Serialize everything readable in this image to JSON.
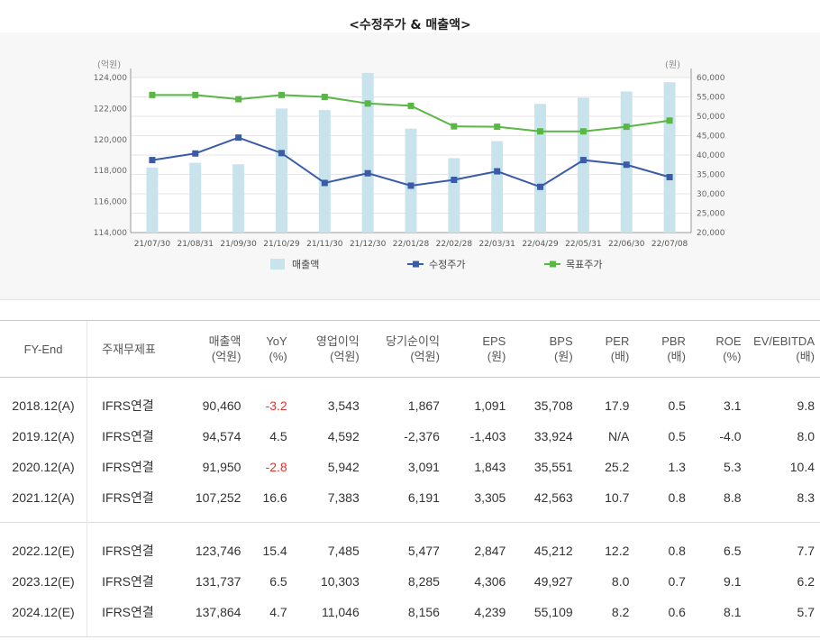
{
  "chart_data": {
    "type": "bar+line",
    "title": "<수정주가 & 매출액>",
    "categories": [
      "21/07/30",
      "21/08/31",
      "21/09/30",
      "21/10/29",
      "21/11/30",
      "21/12/30",
      "22/01/28",
      "22/02/28",
      "22/03/31",
      "22/04/29",
      "22/05/31",
      "22/06/30",
      "22/07/08"
    ],
    "left_axis": {
      "unit": "(억원)",
      "ylim": [
        114000,
        124000
      ],
      "ticks": [
        "114,000",
        "116,000",
        "118,000",
        "120,000",
        "122,000",
        "124,000"
      ]
    },
    "right_axis": {
      "unit": "(원)",
      "ylim": [
        20000,
        60000
      ],
      "ticks": [
        "20,000",
        "25,000",
        "30,000",
        "35,000",
        "40,000",
        "45,000",
        "50,000",
        "55,000",
        "60,000"
      ]
    },
    "series": [
      {
        "name": "매출액",
        "kind": "bar",
        "axis": "left",
        "color": "#c8e3ec",
        "values": [
          118200,
          118500,
          118400,
          122000,
          121900,
          124300,
          120700,
          118800,
          119900,
          122300,
          122700,
          123100,
          123700
        ]
      },
      {
        "name": "수정주가",
        "kind": "line",
        "axis": "right",
        "color": "#3a5ca8",
        "values": [
          38700,
          40400,
          44500,
          40500,
          32800,
          35300,
          32100,
          33600,
          35800,
          31800,
          38700,
          37500,
          34300
        ]
      },
      {
        "name": "목표주가",
        "kind": "line",
        "axis": "right",
        "color": "#59b746",
        "values": [
          55500,
          55500,
          54400,
          55500,
          55000,
          53300,
          52700,
          47400,
          47300,
          46100,
          46100,
          47300,
          48900
        ]
      }
    ],
    "legend_position": "bottom",
    "grid": true
  },
  "table": {
    "headers": [
      [
        "FY-End",
        ""
      ],
      [
        "주재무제표",
        ""
      ],
      [
        "매출액",
        "(억원)"
      ],
      [
        "YoY",
        "(%)"
      ],
      [
        "영업이익",
        "(억원)"
      ],
      [
        "당기순이익",
        "(억원)"
      ],
      [
        "EPS",
        "(원)"
      ],
      [
        "BPS",
        "(원)"
      ],
      [
        "PER",
        "(배)"
      ],
      [
        "PBR",
        "(배)"
      ],
      [
        "ROE",
        "(%)"
      ],
      [
        "EV/EBITDA",
        "(배)"
      ]
    ],
    "rows": [
      [
        "2018.12(A)",
        "IFRS연결",
        "90,460",
        "-3.2",
        "3,543",
        "1,867",
        "1,091",
        "35,708",
        "17.9",
        "0.5",
        "3.1",
        "9.8"
      ],
      [
        "2019.12(A)",
        "IFRS연결",
        "94,574",
        "4.5",
        "4,592",
        "-2,376",
        "-1,403",
        "33,924",
        "N/A",
        "0.5",
        "-4.0",
        "8.0"
      ],
      [
        "2020.12(A)",
        "IFRS연결",
        "91,950",
        "-2.8",
        "5,942",
        "3,091",
        "1,843",
        "35,551",
        "25.2",
        "1.3",
        "5.3",
        "10.4"
      ],
      [
        "2021.12(A)",
        "IFRS연결",
        "107,252",
        "16.6",
        "7,383",
        "6,191",
        "3,305",
        "42,563",
        "10.7",
        "0.8",
        "8.8",
        "8.3"
      ],
      [
        "2022.12(E)",
        "IFRS연결",
        "123,746",
        "15.4",
        "7,485",
        "5,477",
        "2,847",
        "45,212",
        "12.2",
        "0.8",
        "6.5",
        "7.7"
      ],
      [
        "2023.12(E)",
        "IFRS연결",
        "131,737",
        "6.5",
        "10,303",
        "8,285",
        "4,306",
        "49,927",
        "8.0",
        "0.7",
        "9.1",
        "6.2"
      ],
      [
        "2024.12(E)",
        "IFRS연결",
        "137,864",
        "4.7",
        "11,046",
        "8,156",
        "4,239",
        "55,109",
        "8.2",
        "0.6",
        "8.1",
        "5.7"
      ]
    ],
    "red_cells": [
      [
        0,
        3
      ],
      [
        2,
        3
      ]
    ],
    "group_break_after_row": 3
  }
}
